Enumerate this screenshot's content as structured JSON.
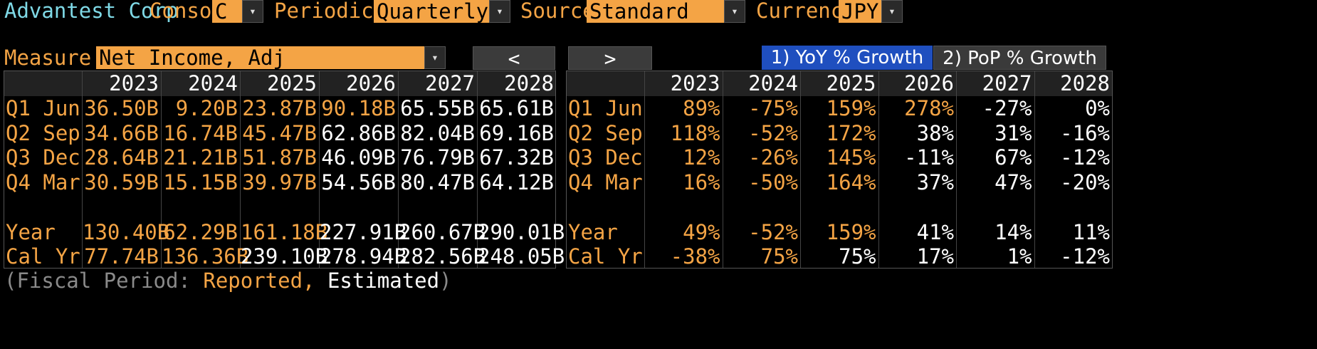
{
  "header": {
    "company": "Advantest Corp",
    "consol_label": "Consol",
    "consol_value": "C",
    "periodicity_label": "Periodicity",
    "periodicity_value": "Quarterly",
    "source_label": "Source",
    "source_value": "Standard",
    "currency_label": "Currency",
    "currency_value": "JPY",
    "dropdown_glyph": "▾"
  },
  "measure": {
    "label": "Measure",
    "value": "Net Income, Adj",
    "prev_label": "<",
    "next_label": ">"
  },
  "toggles": {
    "yoy": "1) YoY % Growth",
    "pop": "2) PoP % Growth",
    "active": "yoy"
  },
  "years": [
    "2023",
    "2024",
    "2025",
    "2026",
    "2027",
    "2028"
  ],
  "values_table": {
    "rows": [
      {
        "label": "Q1 Jun",
        "cells": [
          "36.50B",
          "9.20B",
          "23.87B",
          "90.18B",
          "65.55B",
          "65.61B"
        ],
        "reported": [
          true,
          true,
          true,
          true,
          false,
          false
        ]
      },
      {
        "label": "Q2 Sep",
        "cells": [
          "34.66B",
          "16.74B",
          "45.47B",
          "62.86B",
          "82.04B",
          "69.16B"
        ],
        "reported": [
          true,
          true,
          true,
          false,
          false,
          false
        ]
      },
      {
        "label": "Q3 Dec",
        "cells": [
          "28.64B",
          "21.21B",
          "51.87B",
          "46.09B",
          "76.79B",
          "67.32B"
        ],
        "reported": [
          true,
          true,
          true,
          false,
          false,
          false
        ]
      },
      {
        "label": "Q4 Mar",
        "cells": [
          "30.59B",
          "15.15B",
          "39.97B",
          "54.56B",
          "80.47B",
          "64.12B"
        ],
        "reported": [
          true,
          true,
          true,
          false,
          false,
          false
        ]
      },
      {
        "label": "",
        "cells": [
          "",
          "",
          "",
          "",
          "",
          ""
        ],
        "reported": [
          false,
          false,
          false,
          false,
          false,
          false
        ]
      },
      {
        "label": "Year",
        "cells": [
          "130.40B",
          "62.29B",
          "161.18B",
          "227.91B",
          "260.67B",
          "290.01B"
        ],
        "reported": [
          true,
          true,
          true,
          false,
          false,
          false
        ]
      },
      {
        "label": "Cal Yr",
        "cells": [
          "77.74B",
          "136.36B",
          "239.10B",
          "278.94B",
          "282.56B",
          "248.05B"
        ],
        "reported": [
          true,
          true,
          false,
          false,
          false,
          false
        ]
      }
    ]
  },
  "growth_table": {
    "rows": [
      {
        "label": "Q1 Jun",
        "cells": [
          "89%",
          "-75%",
          "159%",
          "278%",
          "-27%",
          "0%"
        ],
        "reported": [
          true,
          true,
          true,
          true,
          false,
          false
        ]
      },
      {
        "label": "Q2 Sep",
        "cells": [
          "118%",
          "-52%",
          "172%",
          "38%",
          "31%",
          "-16%"
        ],
        "reported": [
          true,
          true,
          true,
          false,
          false,
          false
        ]
      },
      {
        "label": "Q3 Dec",
        "cells": [
          "12%",
          "-26%",
          "145%",
          "-11%",
          "67%",
          "-12%"
        ],
        "reported": [
          true,
          true,
          true,
          false,
          false,
          false
        ]
      },
      {
        "label": "Q4 Mar",
        "cells": [
          "16%",
          "-50%",
          "164%",
          "37%",
          "47%",
          "-20%"
        ],
        "reported": [
          true,
          true,
          true,
          false,
          false,
          false
        ]
      },
      {
        "label": "",
        "cells": [
          "",
          "",
          "",
          "",
          "",
          ""
        ],
        "reported": [
          false,
          false,
          false,
          false,
          false,
          false
        ]
      },
      {
        "label": "Year",
        "cells": [
          "49%",
          "-52%",
          "159%",
          "41%",
          "14%",
          "11%"
        ],
        "reported": [
          true,
          true,
          true,
          false,
          false,
          false
        ]
      },
      {
        "label": "Cal Yr",
        "cells": [
          "-38%",
          "75%",
          "75%",
          "17%",
          "1%",
          "-12%"
        ],
        "reported": [
          true,
          true,
          false,
          false,
          false,
          false
        ]
      }
    ]
  },
  "footer": {
    "prefix": "(Fiscal Period: ",
    "reported": "Reported,",
    "estimated": " Estimated",
    "suffix": ")"
  },
  "colors": {
    "reported": "#f4a445",
    "estimated": "#ffffff",
    "title": "#7fd9e6",
    "active_toggle": "#1f4fbf"
  }
}
